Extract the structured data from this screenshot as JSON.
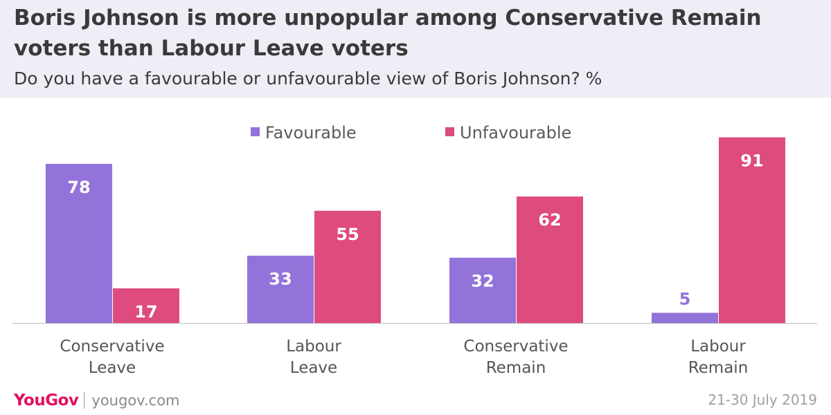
{
  "header": {
    "title": "Boris Johnson is more unpopular among Conservative Remain voters than Labour Leave voters",
    "subtitle": "Do you have a favourable or unfavourable view of Boris Johnson? %"
  },
  "footer": {
    "brand": "YouGov",
    "website": "yougov.com",
    "date": "21-30 July 2019"
  },
  "colors": {
    "favourable": "#9273d9",
    "unfavourable": "#dd4b7f",
    "text": "#3a3a3a",
    "axis": "#bdbdbd"
  },
  "chart_data": {
    "type": "bar",
    "title": "Boris Johnson is more unpopular among Conservative Remain voters than Labour Leave voters",
    "subtitle": "Do you have a favourable or unfavourable view of Boris Johnson? %",
    "categories": [
      [
        "Conservative",
        "Leave"
      ],
      [
        "Labour",
        "Leave"
      ],
      [
        "Conservative",
        "Remain"
      ],
      [
        "Labour",
        "Remain"
      ]
    ],
    "series": [
      {
        "name": "Favourable",
        "values": [
          78,
          33,
          32,
          5
        ]
      },
      {
        "name": "Unfavourable",
        "values": [
          17,
          55,
          62,
          91
        ]
      }
    ],
    "xlabel": "",
    "ylabel": "",
    "ylim": [
      0,
      100
    ],
    "grid": false,
    "legend": "top-center"
  }
}
